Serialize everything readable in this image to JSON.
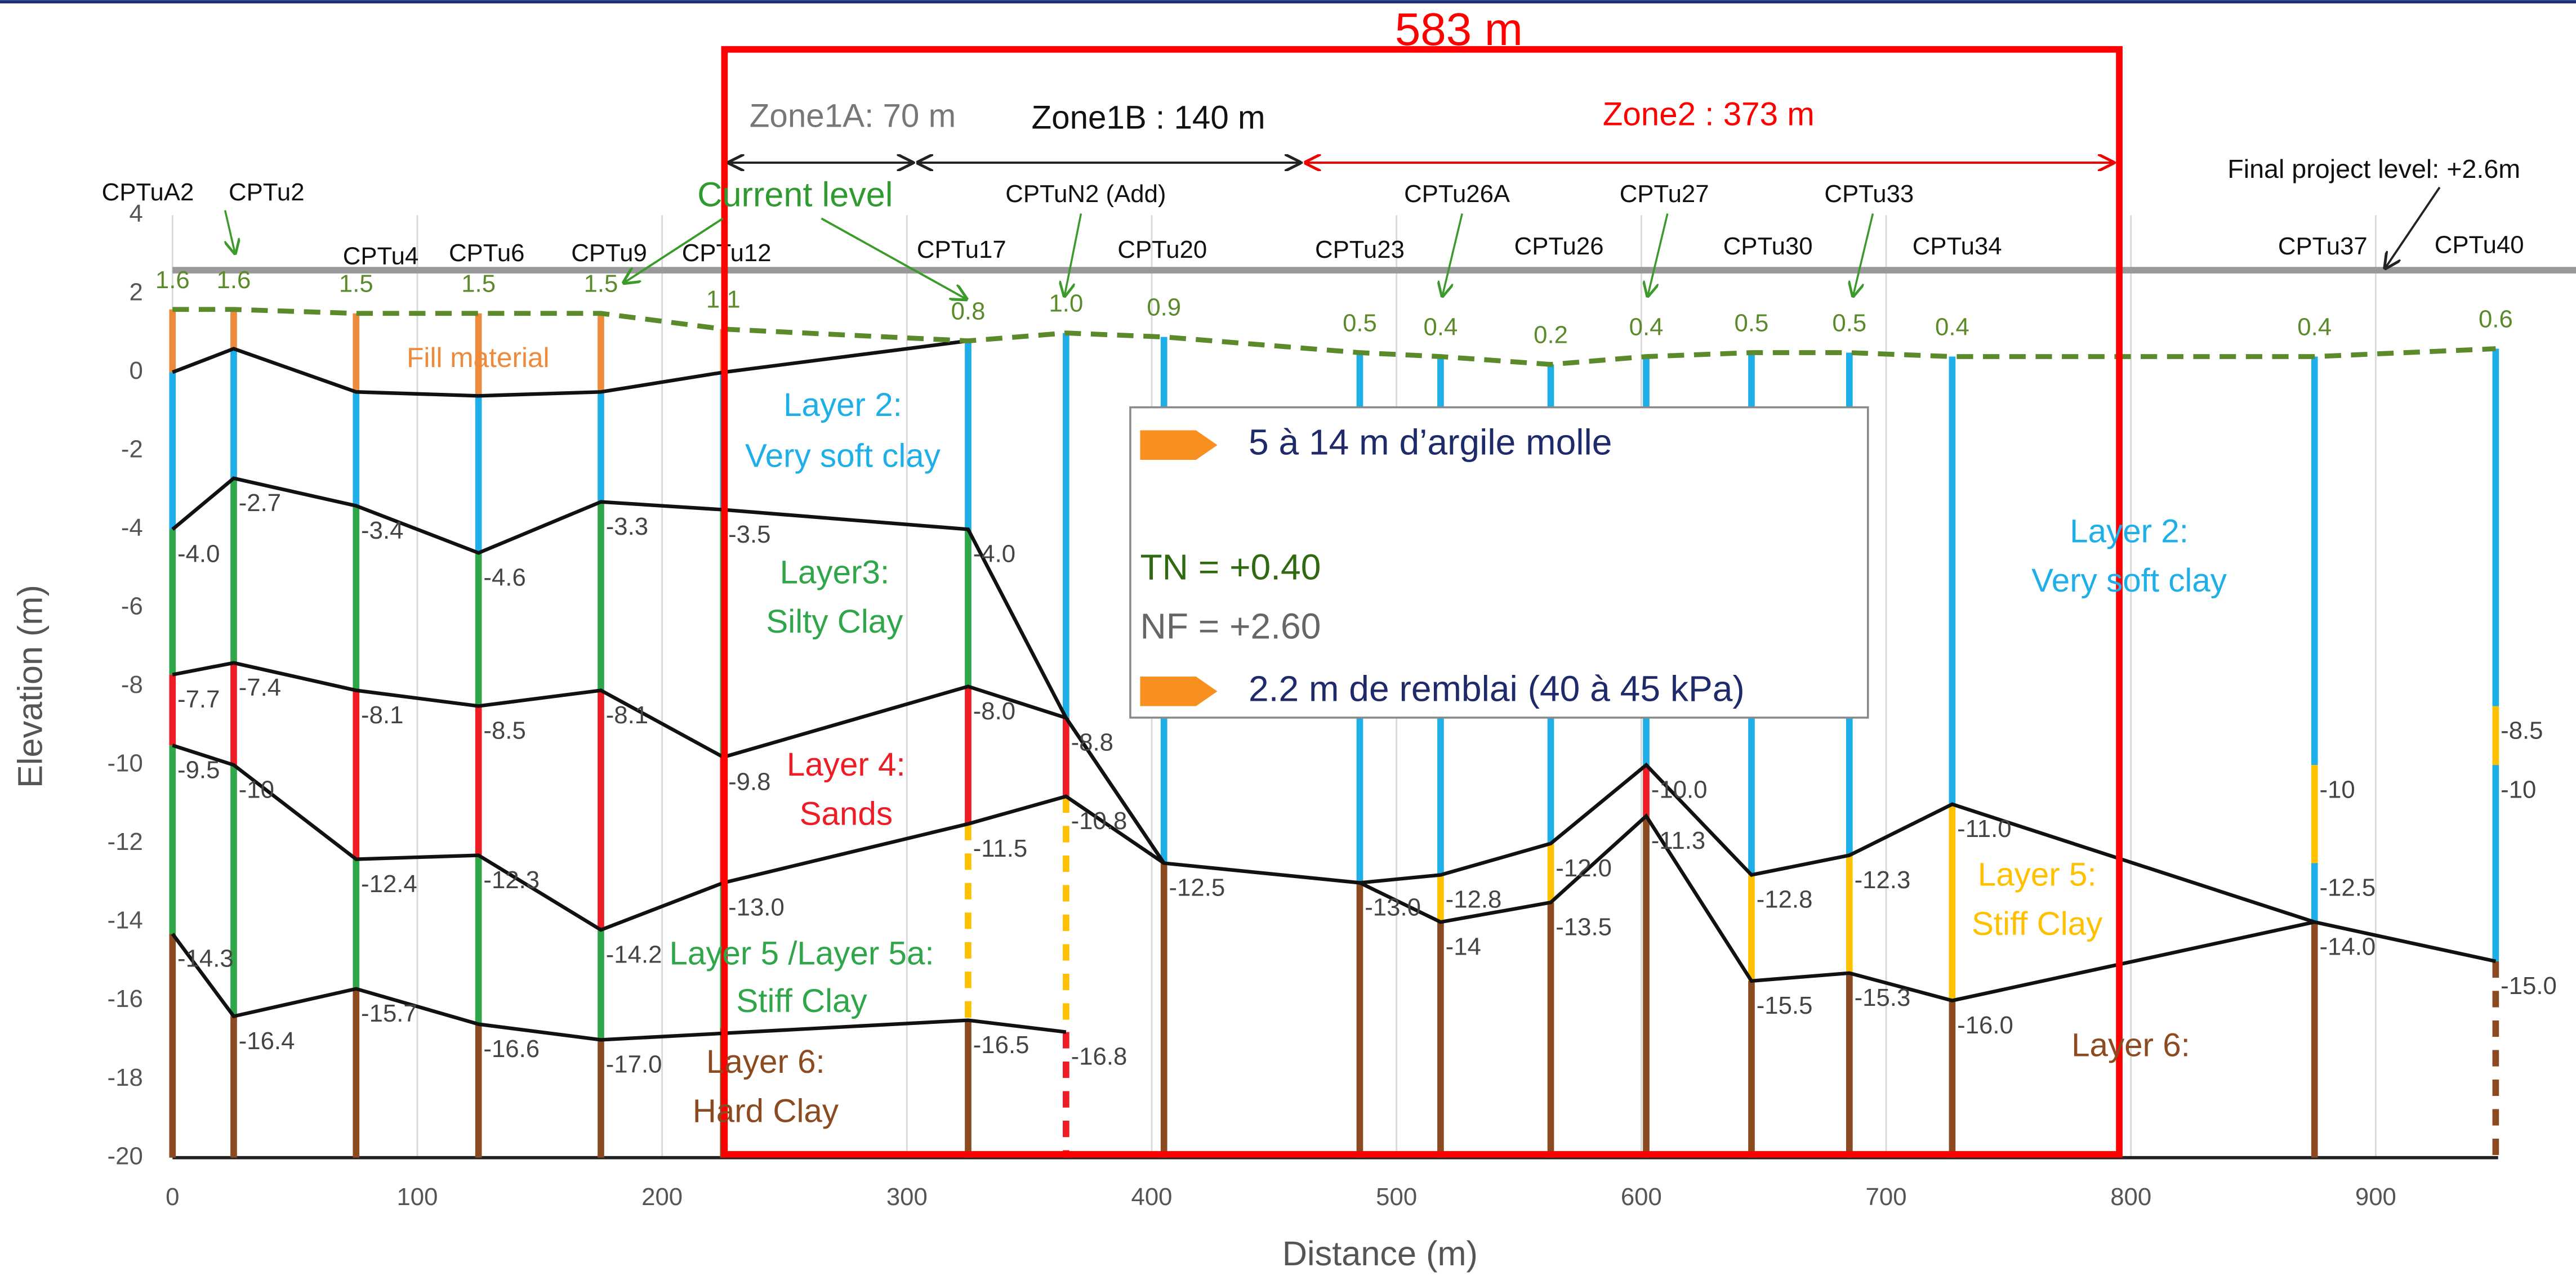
{
  "chart_data": {
    "type": "profile",
    "xlabel": "Distance (m)",
    "ylabel": "Elevation (m)",
    "xlim": [
      0,
      950
    ],
    "ylim": [
      -20,
      4
    ],
    "xticks": [
      0,
      100,
      200,
      300,
      400,
      500,
      600,
      700,
      800,
      900
    ],
    "yticks": [
      4,
      2,
      0,
      -2,
      -4,
      -6,
      -8,
      -10,
      -12,
      -14,
      -16,
      -18,
      -20
    ],
    "grid": true,
    "final_level": 2.6,
    "layer_colors": {
      "O": "#ed8a3c",
      "B": "#1eaee8",
      "G": "#2fa64a",
      "R": "#ee1c24",
      "Y": "#ffc000",
      "N": "#8b4a1f"
    },
    "boreholes": [
      {
        "name": "CPTuA2",
        "x": 0,
        "top": 1.6,
        "top_label": "1.6",
        "bounds": [
          0,
          -4.0,
          -7.7,
          -9.5,
          -14.3
        ],
        "bound_labels": [
          null,
          "-4.0",
          "-7.7",
          "-9.5",
          "-14.3"
        ],
        "colors": [
          "O",
          "B",
          "G",
          "R",
          "G",
          "N"
        ],
        "dashed": []
      },
      {
        "name": "CPTu2",
        "x": 25,
        "top": 1.6,
        "top_label": "1.6",
        "bounds": [
          0.6,
          -2.7,
          -7.4,
          -10,
          -16.4
        ],
        "bound_labels": [
          null,
          "-2.7",
          "-7.4",
          "-10",
          "-16.4"
        ],
        "colors": [
          "O",
          "B",
          "G",
          "R",
          "G",
          "N"
        ],
        "dashed": []
      },
      {
        "name": "CPTu4",
        "x": 75,
        "top": 1.5,
        "top_label": "1.5",
        "bounds": [
          -0.5,
          -3.4,
          -8.1,
          -12.4,
          -15.7
        ],
        "bound_labels": [
          null,
          "-3.4",
          "-8.1",
          "-12.4",
          "-15.7"
        ],
        "colors": [
          "O",
          "B",
          "G",
          "R",
          "G",
          "N"
        ],
        "dashed": []
      },
      {
        "name": "CPTu6",
        "x": 125,
        "top": 1.5,
        "top_label": "1.5",
        "bounds": [
          -0.6,
          -4.6,
          -8.5,
          -12.3,
          -16.6
        ],
        "bound_labels": [
          null,
          "-4.6",
          "-8.5",
          "-12.3",
          "-16.6"
        ],
        "colors": [
          "O",
          "B",
          "G",
          "R",
          "G",
          "N"
        ],
        "dashed": []
      },
      {
        "name": "CPTu9",
        "x": 175,
        "top": 1.5,
        "top_label": "1.5",
        "bounds": [
          -0.5,
          -3.3,
          -8.1,
          -14.2,
          -17.0
        ],
        "bound_labels": [
          null,
          "-3.3",
          "-8.1",
          "-14.2",
          "-17.0"
        ],
        "colors": [
          "O",
          "B",
          "G",
          "R",
          "G",
          "N"
        ],
        "dashed": []
      },
      {
        "name": "CPTu12",
        "x": 225,
        "top": 1.1,
        "top_label": "1.1",
        "bounds": [
          0,
          -3.5,
          -9.8,
          -13.0,
          -16.7
        ],
        "bound_labels": [
          null,
          "-3.5",
          "-9.8",
          "-13.0",
          null
        ],
        "colors": [
          "O",
          "B",
          "G",
          "R",
          "G",
          "N"
        ],
        "dashed": []
      },
      {
        "name": "CPTu17",
        "x": 325,
        "top": 0.8,
        "top_label": "0.8",
        "bounds": [
          -4.0,
          -8.0,
          -11.5,
          -16.5
        ],
        "bound_labels": [
          "-4.0",
          "-8.0",
          "-11.5",
          "-16.5"
        ],
        "colors": [
          "B",
          "G",
          "R",
          "Y",
          "N"
        ],
        "dashed": [
          3
        ]
      },
      {
        "name": "CPTuN2 (Add)",
        "x": 365,
        "top": 1.0,
        "top_label": "1.0",
        "bounds": [
          -8.8,
          -10.8,
          -16.8
        ],
        "bound_labels": [
          "-8.8",
          "-10.8",
          "-16.8"
        ],
        "colors": [
          "B",
          "R",
          "Y",
          "R"
        ],
        "dashed": [
          2,
          3
        ]
      },
      {
        "name": "CPTu20",
        "x": 405,
        "top": 0.9,
        "top_label": "0.9",
        "bounds": [
          -12.5
        ],
        "bound_labels": [
          "-12.5"
        ],
        "colors": [
          "B",
          "N"
        ],
        "dashed": []
      },
      {
        "name": "CPTu23",
        "x": 485,
        "top": 0.5,
        "top_label": "0.5",
        "bounds": [
          -13.0
        ],
        "bound_labels": [
          "-13.0"
        ],
        "colors": [
          "B",
          "N"
        ],
        "dashed": []
      },
      {
        "name": "CPTu26A",
        "x": 518,
        "top": 0.4,
        "top_label": "0.4",
        "bounds": [
          -12.8,
          -14
        ],
        "bound_labels": [
          "-12.8",
          "-14"
        ],
        "colors": [
          "B",
          "Y",
          "N"
        ],
        "dashed": []
      },
      {
        "name": "CPTu26",
        "x": 563,
        "top": 0.2,
        "top_label": "0.2",
        "bounds": [
          -12.0,
          -13.5
        ],
        "bound_labels": [
          "-12.0",
          "-13.5"
        ],
        "colors": [
          "B",
          "Y",
          "N"
        ],
        "dashed": []
      },
      {
        "name": "CPTu27",
        "x": 602,
        "top": 0.4,
        "top_label": "0.4",
        "bounds": [
          -10.0,
          -11.3
        ],
        "bound_labels": [
          "-10.0",
          "-11.3"
        ],
        "colors": [
          "B",
          "R",
          "N"
        ],
        "dashed": []
      },
      {
        "name": "CPTu30",
        "x": 645,
        "top": 0.5,
        "top_label": "0.5",
        "bounds": [
          -12.8,
          -15.5
        ],
        "bound_labels": [
          "-12.8",
          "-15.5"
        ],
        "colors": [
          "B",
          "Y",
          "N"
        ],
        "dashed": []
      },
      {
        "name": "CPTu33",
        "x": 685,
        "top": 0.5,
        "top_label": "0.5",
        "bounds": [
          -12.3,
          -15.3
        ],
        "bound_labels": [
          "-12.3",
          "-15.3"
        ],
        "colors": [
          "B",
          "Y",
          "N"
        ],
        "dashed": []
      },
      {
        "name": "CPTu34",
        "x": 727,
        "top": 0.4,
        "top_label": "0.4",
        "bounds": [
          -11.0,
          -16.0
        ],
        "bound_labels": [
          "-11.0",
          "-16.0"
        ],
        "colors": [
          "B",
          "Y",
          "N"
        ],
        "dashed": []
      },
      {
        "name": "CPTu37",
        "x": 875,
        "top": 0.4,
        "top_label": "0.4",
        "bounds": [
          -10,
          -12.5,
          -14.0
        ],
        "bound_labels": [
          "-10",
          "-12.5",
          "-14.0"
        ],
        "colors": [
          "B",
          "Y",
          "B",
          "N"
        ],
        "dashed": []
      },
      {
        "name": "CPTu40",
        "x": 949,
        "top": 0.6,
        "top_label": "0.6",
        "bounds": [
          -8.5,
          -10,
          -15.0
        ],
        "bound_labels": [
          "-8.5",
          "-10",
          "-15.0"
        ],
        "colors": [
          "B",
          "Y",
          "B",
          "N"
        ],
        "dashed": [
          3
        ]
      }
    ],
    "lines": [
      {
        "x": [
          0,
          25,
          75,
          125,
          175,
          225,
          325
        ],
        "values": [
          0,
          0.6,
          -0.5,
          -0.6,
          -0.5,
          0,
          0.8
        ]
      },
      {
        "x": [
          0,
          25,
          75,
          125,
          175,
          225,
          325,
          365,
          405,
          485,
          518,
          563,
          602,
          645,
          685,
          727,
          875,
          949
        ],
        "values": [
          -4.0,
          -2.7,
          -3.4,
          -4.6,
          -3.3,
          -3.5,
          -4.0,
          -8.8,
          -12.5,
          -13.0,
          -12.8,
          -12.0,
          -10.0,
          -12.8,
          -12.3,
          -11.0,
          -14.0,
          -15.0
        ]
      },
      {
        "x": [
          0,
          25,
          75,
          125,
          175,
          225,
          325,
          365,
          405
        ],
        "values": [
          -7.7,
          -7.4,
          -8.1,
          -8.5,
          -8.1,
          -9.8,
          -8.0,
          -8.8,
          -12.5
        ]
      },
      {
        "x": [
          0,
          25,
          75,
          125,
          175,
          225,
          325,
          365,
          405
        ],
        "values": [
          -9.5,
          -10,
          -12.4,
          -12.3,
          -14.2,
          -13.0,
          -11.5,
          -10.8,
          -12.5
        ]
      },
      {
        "x": [
          0,
          25,
          75,
          125,
          175,
          325,
          365
        ],
        "values": [
          -14.3,
          -16.4,
          -15.7,
          -16.6,
          -17.0,
          -16.5,
          -16.8
        ]
      },
      {
        "x": [
          485,
          518,
          563,
          602,
          645,
          685,
          727,
          875
        ],
        "values": [
          -13.0,
          -14,
          -13.5,
          -11.3,
          -15.5,
          -15.3,
          -16.0,
          -14.0
        ]
      }
    ],
    "annotations": {
      "total": "583 m",
      "zone1a": "Zone1A: 70 m",
      "zone1b": "Zone1B : 140 m",
      "zone2": "Zone2 : 373 m",
      "final_level": "Final project level: +2.6m",
      "current_level": "Current level",
      "fill": "Fill material",
      "layer2a": "Layer 2:",
      "layer2b": "Very soft clay",
      "layer3a": "Layer3:",
      "layer3b": "Silty Clay",
      "layer4a": "Layer 4:",
      "layer4b": "Sands",
      "layer5a": "Layer 5 /Layer 5a:",
      "layer5b": "Stiff Clay",
      "layer6a": "Layer 6:",
      "layer6b": "Hard Clay",
      "r_layer2a": "Layer 2:",
      "r_layer2b": "Very soft clay",
      "r_layer5a": "Layer 5:",
      "r_layer5b": "Stiff Clay",
      "r_layer6": "Layer 6:"
    },
    "legend": {
      "line1": "5 à 14 m d’argile molle",
      "line2": "TN = +0.40",
      "line3": "NF = +2.60",
      "line4": "2.2 m de remblai (40 à 45 kPa)"
    }
  }
}
